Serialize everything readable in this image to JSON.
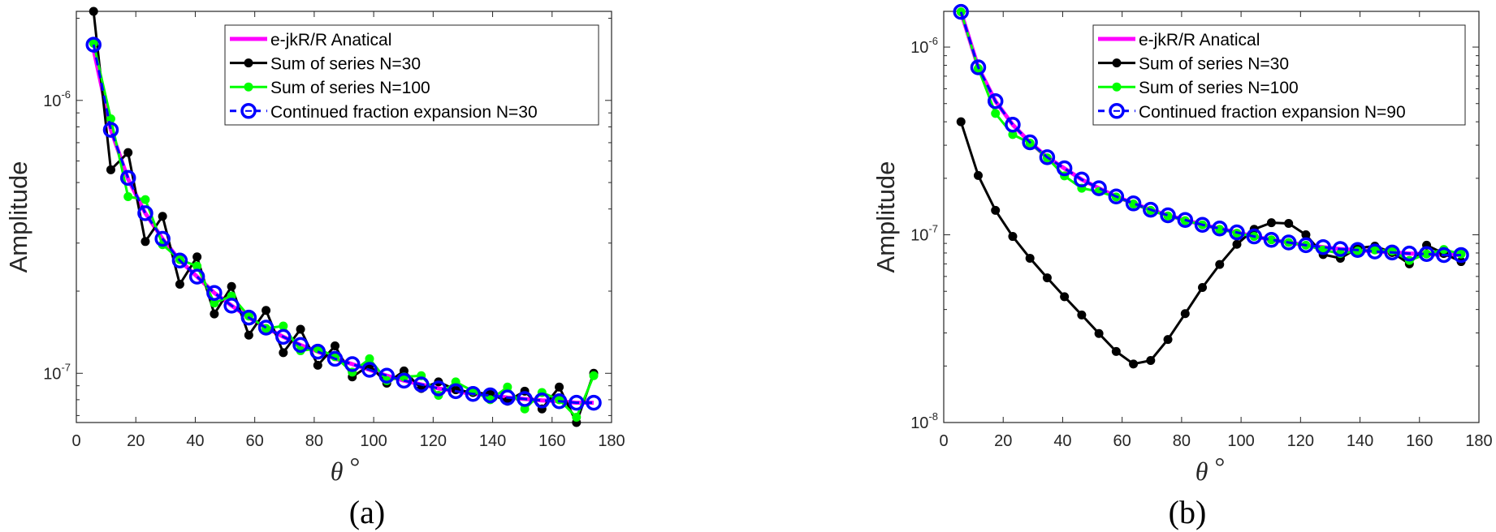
{
  "chart_data": [
    {
      "type": "line",
      "panel_label": "(a)",
      "xlabel": "θ",
      "xlabel_unit": "°",
      "ylabel": "Amplitude",
      "xlim": [
        0,
        180
      ],
      "ylim": [
        6.6e-08,
        2.12e-06
      ],
      "yscale": "log",
      "xticks": [
        0,
        20,
        40,
        60,
        80,
        100,
        120,
        140,
        160,
        180
      ],
      "yticks": [
        {
          "value": 1e-06,
          "base": "10",
          "exp": "-6"
        },
        {
          "value": 1e-07,
          "base": "10",
          "exp": "-7"
        }
      ],
      "legend_position": "top-right",
      "x": [
        5.8,
        11.6,
        17.4,
        23.2,
        29,
        34.8,
        40.6,
        46.4,
        52.2,
        58,
        63.8,
        69.6,
        75.4,
        81.2,
        87,
        92.8,
        98.6,
        104.4,
        110.2,
        116,
        121.8,
        127.6,
        133.4,
        139.2,
        145,
        150.8,
        156.6,
        162.4,
        168.2,
        174
      ],
      "series": [
        {
          "name": "e-jkR/R Anatical",
          "color": "#ff00ff",
          "style": "solid-thick",
          "values": [
            1.54e-06,
            7.8e-07,
            5.15e-07,
            3.86e-07,
            3.11e-07,
            2.59e-07,
            2.26e-07,
            1.97e-07,
            1.77e-07,
            1.6e-07,
            1.47e-07,
            1.36e-07,
            1.27e-07,
            1.2e-07,
            1.13e-07,
            1.08e-07,
            1.03e-07,
            9.8e-08,
            9.4e-08,
            9.1e-08,
            8.8e-08,
            8.6e-08,
            8.4e-08,
            8.3e-08,
            8.15e-08,
            8.05e-08,
            7.95e-08,
            7.9e-08,
            7.8e-08,
            7.8e-08
          ]
        },
        {
          "name": "Sum of series N=30",
          "color": "#000000",
          "style": "solid-dot",
          "values": [
            2.12e-06,
            5.57e-07,
            6.44e-07,
            3.04e-07,
            3.76e-07,
            2.12e-07,
            2.67e-07,
            1.65e-07,
            2.08e-07,
            1.38e-07,
            1.7e-07,
            1.19e-07,
            1.45e-07,
            1.07e-07,
            1.26e-07,
            9.7e-08,
            1.07e-07,
            9.2e-08,
            1.02e-07,
            8.8e-08,
            9.3e-08,
            8.7e-08,
            8.5e-08,
            8.4e-08,
            7.9e-08,
            8.6e-08,
            7.4e-08,
            8.9e-08,
            6.6e-08,
            1e-07
          ]
        },
        {
          "name": "Sum of series N=100",
          "color": "#00ff00",
          "style": "solid-dot",
          "values": [
            1.62e-06,
            8.56e-07,
            4.44e-07,
            4.33e-07,
            2.96e-07,
            2.61e-07,
            2.47e-07,
            1.81e-07,
            1.92e-07,
            1.62e-07,
            1.46e-07,
            1.49e-07,
            1.21e-07,
            1.23e-07,
            1.15e-07,
            1.01e-07,
            1.13e-07,
            9.4e-08,
            9.7e-08,
            9.8e-08,
            8.3e-08,
            9.3e-08,
            8.6e-08,
            8e-08,
            8.9e-08,
            7.4e-08,
            8.5e-08,
            8e-08,
            6.9e-08,
            9.8e-08
          ]
        },
        {
          "name": "Continued fraction expansion N=30",
          "color": "#0000ff",
          "style": "dashed-circle",
          "values": [
            1.6e-06,
            7.8e-07,
            5.2e-07,
            3.86e-07,
            3.11e-07,
            2.59e-07,
            2.26e-07,
            1.97e-07,
            1.77e-07,
            1.6e-07,
            1.47e-07,
            1.36e-07,
            1.27e-07,
            1.2e-07,
            1.13e-07,
            1.08e-07,
            1.03e-07,
            9.8e-08,
            9.4e-08,
            9.1e-08,
            8.8e-08,
            8.6e-08,
            8.4e-08,
            8.3e-08,
            8.15e-08,
            8.05e-08,
            7.95e-08,
            7.9e-08,
            7.8e-08,
            7.8e-08
          ]
        }
      ]
    },
    {
      "type": "line",
      "panel_label": "(b)",
      "xlabel": "θ",
      "xlabel_unit": "°",
      "ylabel": "Amplitude",
      "xlim": [
        0,
        180
      ],
      "ylim": [
        1e-08,
        1.55e-06
      ],
      "yscale": "log",
      "xticks": [
        0,
        20,
        40,
        60,
        80,
        100,
        120,
        140,
        160,
        180
      ],
      "yticks": [
        {
          "value": 1e-06,
          "base": "10",
          "exp": "-6"
        },
        {
          "value": 1e-07,
          "base": "10",
          "exp": "-7"
        },
        {
          "value": 1e-08,
          "base": "10",
          "exp": "-8"
        }
      ],
      "legend_position": "top-right",
      "x": [
        5.8,
        11.6,
        17.4,
        23.2,
        29,
        34.8,
        40.6,
        46.4,
        52.2,
        58,
        63.8,
        69.6,
        75.4,
        81.2,
        87,
        92.8,
        98.6,
        104.4,
        110.2,
        116,
        121.8,
        127.6,
        133.4,
        139.2,
        145,
        150.8,
        156.6,
        162.4,
        168.2,
        174
      ],
      "series": [
        {
          "name": "e-jkR/R Anatical",
          "color": "#ff00ff",
          "style": "solid-thick",
          "values": [
            1.54e-06,
            7.8e-07,
            5.15e-07,
            3.86e-07,
            3.11e-07,
            2.59e-07,
            2.26e-07,
            1.97e-07,
            1.77e-07,
            1.6e-07,
            1.47e-07,
            1.36e-07,
            1.27e-07,
            1.2e-07,
            1.13e-07,
            1.08e-07,
            1.03e-07,
            9.8e-08,
            9.4e-08,
            9.1e-08,
            8.8e-08,
            8.6e-08,
            8.4e-08,
            8.3e-08,
            8.15e-08,
            8.05e-08,
            7.95e-08,
            7.9e-08,
            7.8e-08,
            7.8e-08
          ]
        },
        {
          "name": "Sum of series N=30",
          "color": "#000000",
          "style": "solid-dot",
          "values": [
            4e-07,
            2.07e-07,
            1.35e-07,
            9.8e-08,
            7.5e-08,
            5.9e-08,
            4.68e-08,
            3.74e-08,
            2.98e-08,
            2.39e-08,
            2.05e-08,
            2.14e-08,
            2.77e-08,
            3.8e-08,
            5.24e-08,
            6.95e-08,
            8.9e-08,
            1.07e-07,
            1.16e-07,
            1.15e-07,
            1e-07,
            7.85e-08,
            7.5e-08,
            8.5e-08,
            8.7e-08,
            8.05e-08,
            7e-08,
            8.8e-08,
            7.95e-08,
            7.2e-08
          ]
        },
        {
          "name": "Sum of series N=100",
          "color": "#00ff00",
          "style": "solid-dot",
          "values": [
            1.54e-06,
            7.7e-07,
            4.43e-07,
            3.42e-07,
            3.08e-07,
            2.57e-07,
            2.06e-07,
            1.77e-07,
            1.7e-07,
            1.59e-07,
            1.46e-07,
            1.35e-07,
            1.26e-07,
            1.19e-07,
            1.13e-07,
            1.07e-07,
            1.02e-07,
            9.8e-08,
            9.4e-08,
            9.1e-08,
            8.8e-08,
            8.3e-08,
            7.95e-08,
            8.2e-08,
            8.3e-08,
            8.2e-08,
            7.3e-08,
            7.9e-08,
            8.35e-08,
            7.9e-08
          ]
        },
        {
          "name": "Continued fraction expansion N=90",
          "color": "#0000ff",
          "style": "dashed-circle",
          "values": [
            1.54e-06,
            7.8e-07,
            5.15e-07,
            3.86e-07,
            3.11e-07,
            2.59e-07,
            2.26e-07,
            1.97e-07,
            1.77e-07,
            1.6e-07,
            1.47e-07,
            1.36e-07,
            1.27e-07,
            1.2e-07,
            1.13e-07,
            1.08e-07,
            1.03e-07,
            9.8e-08,
            9.4e-08,
            9.1e-08,
            8.8e-08,
            8.6e-08,
            8.4e-08,
            8.3e-08,
            8.15e-08,
            8.05e-08,
            7.95e-08,
            7.9e-08,
            7.8e-08,
            7.8e-08
          ]
        }
      ]
    }
  ]
}
